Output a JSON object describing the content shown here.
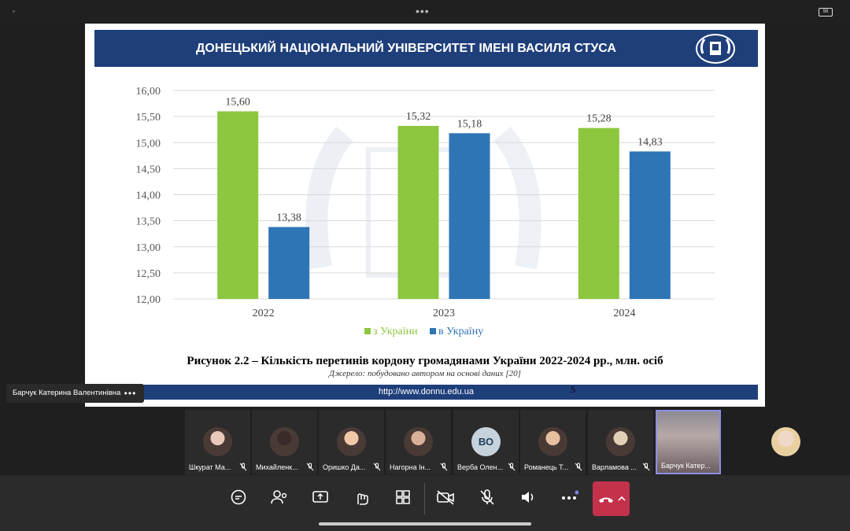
{
  "status": {
    "battery": "98"
  },
  "slide": {
    "header_title": "ДОНЕЦЬКИЙ НАЦІОНАЛЬНИЙ УНІВЕРСИТЕТ ІМЕНІ ВАСИЛЯ СТУСА",
    "caption": "Рисунок 2.2 – Кількість перетинів кордону громадянами України 2022-2024 рр., млн. осіб",
    "source": "Джерело: побудовано автором на основі даних [20]",
    "footer_url": "http://www.donnu.edu.ua",
    "page_number": "5",
    "colors": {
      "header": "#1f3f7a",
      "green": "#8dc63f",
      "blue": "#2e75b6"
    }
  },
  "chart_data": {
    "type": "bar",
    "categories": [
      "2022",
      "2023",
      "2024"
    ],
    "series": [
      {
        "name": "з України",
        "values": [
          15.6,
          15.32,
          15.28
        ],
        "labels": [
          "15,60",
          "15,32",
          "15,28"
        ],
        "color": "#8dc63f"
      },
      {
        "name": "в Україну",
        "values": [
          13.38,
          15.18,
          14.83
        ],
        "labels": [
          "13,38",
          "15,18",
          "14,83"
        ],
        "color": "#2e75b6"
      }
    ],
    "y_ticks": [
      "12,00",
      "12,50",
      "13,00",
      "13,50",
      "14,00",
      "14,50",
      "15,00",
      "15,50",
      "16,00"
    ],
    "ylim": [
      12,
      16
    ],
    "grid": true,
    "legend_position": "bottom"
  },
  "presenter": {
    "name": "Барчук Катерина Валентинівна"
  },
  "participants": [
    {
      "name": "Шкурат Ма...",
      "avatar": "photo",
      "muted": true
    },
    {
      "name": "Михайленк...",
      "avatar": "photo",
      "muted": true
    },
    {
      "name": "Оришко Да...",
      "avatar": "photo",
      "muted": true
    },
    {
      "name": "Нагорна Ін...",
      "avatar": "photo",
      "muted": true
    },
    {
      "name": "Верба Олен...",
      "avatar": "initials",
      "initials": "ВО",
      "muted": true
    },
    {
      "name": "Романець Т...",
      "avatar": "photo",
      "muted": true
    },
    {
      "name": "Варламова ...",
      "avatar": "photo",
      "muted": true
    },
    {
      "name": "Барчук Катер...",
      "avatar": "video",
      "muted": false,
      "active": true
    }
  ],
  "toolbar": {
    "buttons": [
      "chat-icon",
      "people-icon",
      "share-screen-icon",
      "reactions-icon",
      "apps-icon",
      "camera-off-icon",
      "mic-off-icon",
      "speaker-icon",
      "more-icon",
      "hangup-icon"
    ]
  }
}
